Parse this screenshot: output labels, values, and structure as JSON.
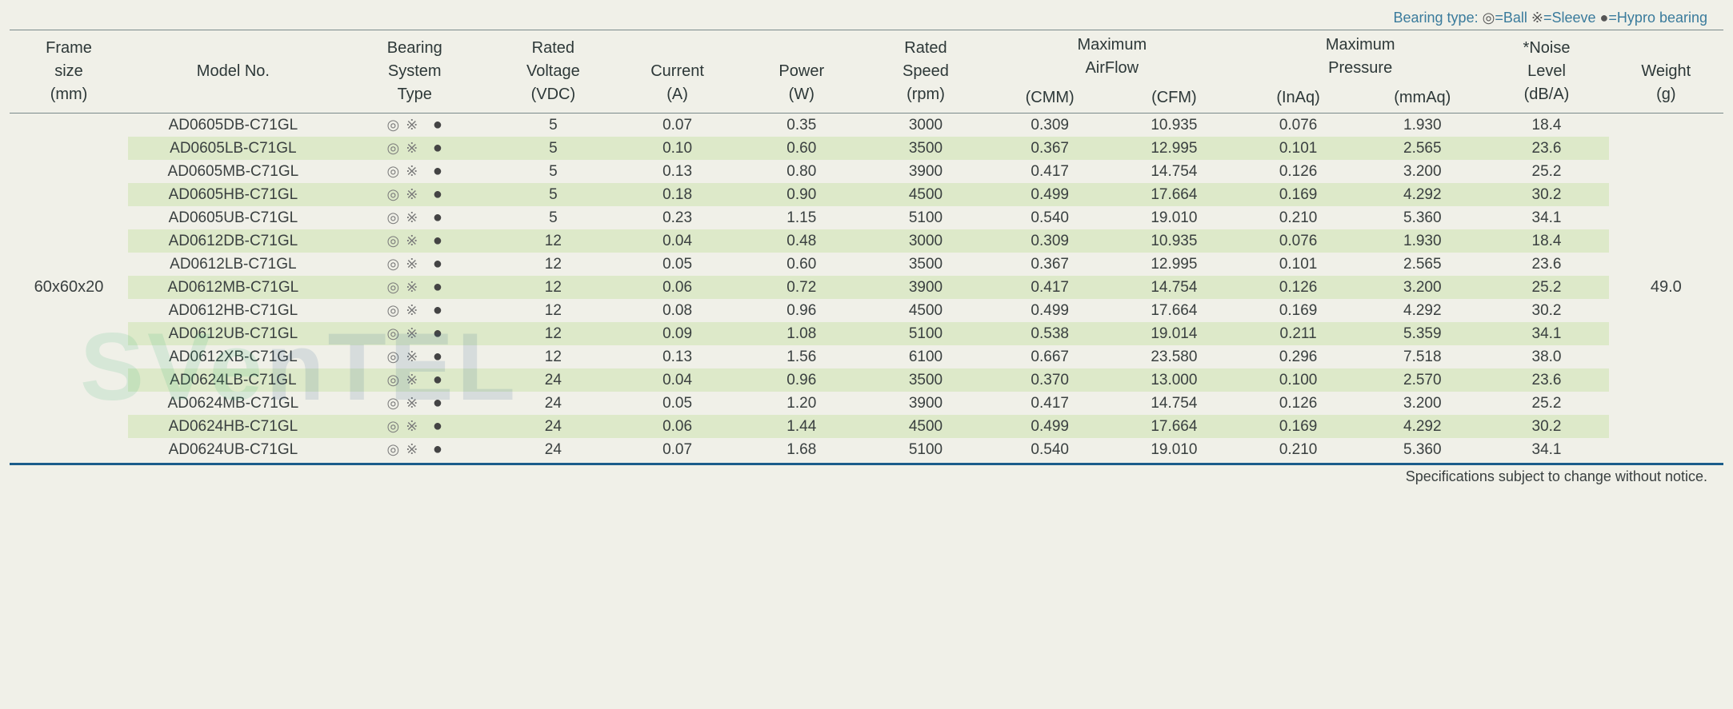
{
  "legend": {
    "label": "Bearing type:",
    "ball_sym": "◎",
    "ball_text": "=Ball",
    "sleeve_sym": "※",
    "sleeve_text": "=Sleeve",
    "hypro_sym": "●",
    "hypro_text": "=Hypro bearing"
  },
  "headers": {
    "frame_l1": "Frame",
    "frame_l2": "size",
    "frame_l3": "(mm)",
    "model": "Model No.",
    "bearing_l1": "Bearing",
    "bearing_l2": "System",
    "bearing_l3": "Type",
    "voltage_l1": "Rated",
    "voltage_l2": "Voltage",
    "voltage_l3": "(VDC)",
    "current_l1": "Current",
    "current_l2": "(A)",
    "power_l1": "Power",
    "power_l2": "(W)",
    "speed_l1": "Rated",
    "speed_l2": "Speed",
    "speed_l3": "(rpm)",
    "airflow_l1": "Maximum",
    "airflow_l2": "AirFlow",
    "cmm": "(CMM)",
    "cfm": "(CFM)",
    "pressure_l1": "Maximum",
    "pressure_l2": "Pressure",
    "inaq": "(InAq)",
    "mmaq": "(mmAq)",
    "noise_l1": "*Noise",
    "noise_l2": "Level",
    "noise_l3": "(dB/A)",
    "weight_l1": "Weight",
    "weight_l2": "(g)"
  },
  "frame_size": "60x60x20",
  "weight": "49.0",
  "bearing_syms": {
    "ball": "◎",
    "sleeve": "※",
    "hypro": "●"
  },
  "rows": [
    {
      "model": "AD0605DB-C71GL",
      "volt": "5",
      "current": "0.07",
      "power": "0.35",
      "speed": "3000",
      "cmm": "0.309",
      "cfm": "10.935",
      "inaq": "0.076",
      "mmaq": "1.930",
      "noise": "18.4"
    },
    {
      "model": "AD0605LB-C71GL",
      "volt": "5",
      "current": "0.10",
      "power": "0.60",
      "speed": "3500",
      "cmm": "0.367",
      "cfm": "12.995",
      "inaq": "0.101",
      "mmaq": "2.565",
      "noise": "23.6"
    },
    {
      "model": "AD0605MB-C71GL",
      "volt": "5",
      "current": "0.13",
      "power": "0.80",
      "speed": "3900",
      "cmm": "0.417",
      "cfm": "14.754",
      "inaq": "0.126",
      "mmaq": "3.200",
      "noise": "25.2"
    },
    {
      "model": "AD0605HB-C71GL",
      "volt": "5",
      "current": "0.18",
      "power": "0.90",
      "speed": "4500",
      "cmm": "0.499",
      "cfm": "17.664",
      "inaq": "0.169",
      "mmaq": "4.292",
      "noise": "30.2"
    },
    {
      "model": "AD0605UB-C71GL",
      "volt": "5",
      "current": "0.23",
      "power": "1.15",
      "speed": "5100",
      "cmm": "0.540",
      "cfm": "19.010",
      "inaq": "0.210",
      "mmaq": "5.360",
      "noise": "34.1"
    },
    {
      "model": "AD0612DB-C71GL",
      "volt": "12",
      "current": "0.04",
      "power": "0.48",
      "speed": "3000",
      "cmm": "0.309",
      "cfm": "10.935",
      "inaq": "0.076",
      "mmaq": "1.930",
      "noise": "18.4"
    },
    {
      "model": "AD0612LB-C71GL",
      "volt": "12",
      "current": "0.05",
      "power": "0.60",
      "speed": "3500",
      "cmm": "0.367",
      "cfm": "12.995",
      "inaq": "0.101",
      "mmaq": "2.565",
      "noise": "23.6"
    },
    {
      "model": "AD0612MB-C71GL",
      "volt": "12",
      "current": "0.06",
      "power": "0.72",
      "speed": "3900",
      "cmm": "0.417",
      "cfm": "14.754",
      "inaq": "0.126",
      "mmaq": "3.200",
      "noise": "25.2"
    },
    {
      "model": "AD0612HB-C71GL",
      "volt": "12",
      "current": "0.08",
      "power": "0.96",
      "speed": "4500",
      "cmm": "0.499",
      "cfm": "17.664",
      "inaq": "0.169",
      "mmaq": "4.292",
      "noise": "30.2"
    },
    {
      "model": "AD0612UB-C71GL",
      "volt": "12",
      "current": "0.09",
      "power": "1.08",
      "speed": "5100",
      "cmm": "0.538",
      "cfm": "19.014",
      "inaq": "0.211",
      "mmaq": "5.359",
      "noise": "34.1"
    },
    {
      "model": "AD0612XB-C71GL",
      "volt": "12",
      "current": "0.13",
      "power": "1.56",
      "speed": "6100",
      "cmm": "0.667",
      "cfm": "23.580",
      "inaq": "0.296",
      "mmaq": "7.518",
      "noise": "38.0"
    },
    {
      "model": "AD0624LB-C71GL",
      "volt": "24",
      "current": "0.04",
      "power": "0.96",
      "speed": "3500",
      "cmm": "0.370",
      "cfm": "13.000",
      "inaq": "0.100",
      "mmaq": "2.570",
      "noise": "23.6"
    },
    {
      "model": "AD0624MB-C71GL",
      "volt": "24",
      "current": "0.05",
      "power": "1.20",
      "speed": "3900",
      "cmm": "0.417",
      "cfm": "14.754",
      "inaq": "0.126",
      "mmaq": "3.200",
      "noise": "25.2"
    },
    {
      "model": "AD0624HB-C71GL",
      "volt": "24",
      "current": "0.06",
      "power": "1.44",
      "speed": "4500",
      "cmm": "0.499",
      "cfm": "17.664",
      "inaq": "0.169",
      "mmaq": "4.292",
      "noise": "30.2"
    },
    {
      "model": "AD0624UB-C71GL",
      "volt": "24",
      "current": "0.07",
      "power": "1.68",
      "speed": "5100",
      "cmm": "0.540",
      "cfm": "19.010",
      "inaq": "0.210",
      "mmaq": "5.360",
      "noise": "34.1"
    }
  ],
  "footer": "Specifications subject to change without notice.",
  "colors": {
    "row_alt_bg": "#dde9c9",
    "page_bg": "#f0f0e8",
    "rule": "#1b5c8a",
    "text": "#3a4040",
    "legend_text": "#3a7b9c"
  },
  "table": {
    "type": "table",
    "alt_row_start": "odd",
    "header_rows": 3,
    "data_rows": 15
  }
}
